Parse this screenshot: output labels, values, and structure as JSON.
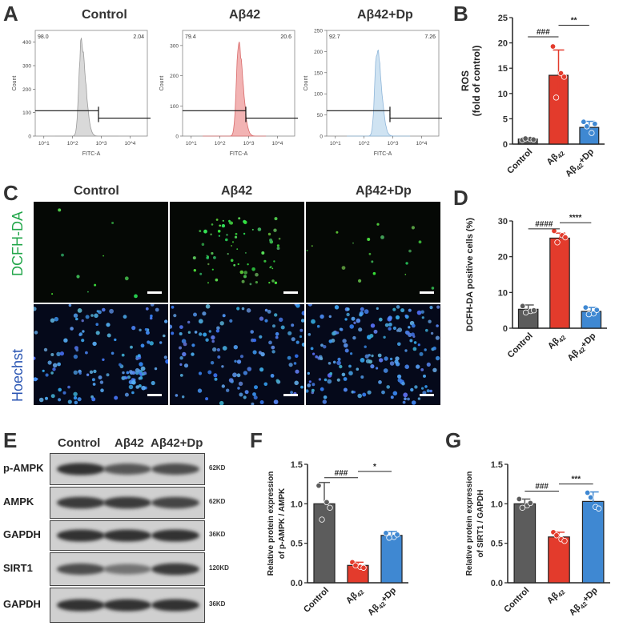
{
  "panels": {
    "A": {
      "letter": "A",
      "plots": [
        {
          "title": "Control",
          "left_pct": "98.0",
          "right_pct": "2.04",
          "yticks": [
            "0",
            "100",
            "200",
            "300",
            "400"
          ],
          "ymax": 450,
          "xlabel": "FITC-A",
          "xticks": [
            "10^1",
            "10^2",
            "10^3",
            "10^4"
          ],
          "fill": "#d9d9d9",
          "stroke": "#9a9a9a",
          "peak_log": 2.3,
          "peak_count": 400
        },
        {
          "title": "Aβ42",
          "left_pct": "79.4",
          "right_pct": "20.6",
          "yticks": [
            "0",
            "100",
            "200",
            "300"
          ],
          "ymax": 350,
          "xlabel": "FITC-A",
          "xticks": [
            "10^1",
            "10^2",
            "10^3",
            "10^4"
          ],
          "fill": "#f2b3b3",
          "stroke": "#d96b6b",
          "peak_log": 2.65,
          "peak_count": 300
        },
        {
          "title": "Aβ42+Dp",
          "left_pct": "92.7",
          "right_pct": "7.26",
          "yticks": [
            "0",
            "50",
            "100",
            "150",
            "200",
            "250"
          ],
          "ymax": 250,
          "xlabel": "FITC-A",
          "xticks": [
            "10^1",
            "10^2",
            "10^3",
            "10^4"
          ],
          "fill": "#cfe3f2",
          "stroke": "#8fb6d9",
          "peak_log": 2.45,
          "peak_count": 205
        }
      ]
    },
    "B": {
      "letter": "B"
    },
    "C": {
      "letter": "C",
      "col_titles": [
        "Control",
        "Aβ42",
        "Aβ42+Dp"
      ],
      "rows": [
        {
          "label": "DCFH-DA",
          "color": "#22a64a"
        },
        {
          "label": "Hoechst",
          "color": "#2b56b3"
        }
      ]
    },
    "D": {
      "letter": "D"
    },
    "E": {
      "letter": "E",
      "col_titles": [
        "Control",
        "Aβ42",
        "Aβ42+Dp"
      ],
      "bands": [
        {
          "label": "p-AMPK",
          "kd": "62KD",
          "int": [
            0.85,
            0.65,
            0.7
          ]
        },
        {
          "label": "AMPK",
          "kd": "62KD",
          "int": [
            0.8,
            0.8,
            0.75
          ]
        },
        {
          "label": "GAPDH",
          "kd": "36KD",
          "int": [
            0.85,
            0.85,
            0.85
          ]
        },
        {
          "label": "SIRT1",
          "kd": "120KD",
          "int": [
            0.7,
            0.5,
            0.8
          ]
        },
        {
          "label": "GAPDH",
          "kd": "36KD",
          "int": [
            0.85,
            0.85,
            0.85
          ]
        }
      ]
    },
    "F": {
      "letter": "F"
    },
    "G": {
      "letter": "G"
    }
  },
  "chart_data": [
    {
      "id": "B",
      "type": "bar",
      "categories": [
        "Control",
        "Aβ42",
        "Aβ42+Dp"
      ],
      "values": [
        1.0,
        13.6,
        3.3
      ],
      "errors": [
        0.3,
        5.0,
        1.2
      ],
      "points": [
        [
          0.8,
          1.0,
          1.1,
          0.9
        ],
        [
          19.3,
          14.0,
          9.2,
          13.3
        ],
        [
          4.4,
          2.2,
          3.5,
          4.0
        ]
      ],
      "colors": [
        "#5c5c5c",
        "#e33b2c",
        "#3f88d2"
      ],
      "ylabel": "ROS",
      "ylabel2": "(fold of control)",
      "ylim": [
        0,
        25
      ],
      "yticks": [
        0,
        5,
        10,
        15,
        20,
        25
      ],
      "sig": [
        {
          "from": 0,
          "to": 1,
          "text": "###",
          "y": 21.2
        },
        {
          "from": 1,
          "to": 2,
          "text": "**",
          "y": 23.5
        }
      ]
    },
    {
      "id": "D",
      "type": "bar",
      "categories": [
        "Control",
        "Aβ42",
        "Aβ42+Dp"
      ],
      "values": [
        5.3,
        25.2,
        4.7
      ],
      "errors": [
        1.2,
        1.4,
        1.1
      ],
      "points": [
        [
          6.2,
          4.8,
          4.4,
          5.0
        ],
        [
          27.2,
          26.0,
          24.0,
          25.4
        ],
        [
          5.8,
          4.1,
          3.9,
          5.1
        ]
      ],
      "colors": [
        "#5c5c5c",
        "#e33b2c",
        "#3f88d2"
      ],
      "ylabel": "DCFH-DA positive cells (%)",
      "ylabel2": "",
      "ylim": [
        0,
        30
      ],
      "yticks": [
        0,
        10,
        20,
        30
      ],
      "sig": [
        {
          "from": 0,
          "to": 1,
          "text": "####",
          "y": 27.8
        },
        {
          "from": 1,
          "to": 2,
          "text": "****",
          "y": 29.5
        }
      ]
    },
    {
      "id": "F",
      "type": "bar",
      "categories": [
        "Control",
        "Aβ42",
        "Aβ42+Dp"
      ],
      "values": [
        1.0,
        0.22,
        0.6
      ],
      "errors": [
        0.27,
        0.04,
        0.05
      ],
      "points": [
        [
          1.23,
          1.02,
          0.8,
          0.95
        ],
        [
          0.26,
          0.2,
          0.22,
          0.19
        ],
        [
          0.63,
          0.58,
          0.57,
          0.61
        ]
      ],
      "colors": [
        "#5c5c5c",
        "#e33b2c",
        "#3f88d2"
      ],
      "ylabel": "Relative protein expression",
      "ylabel2": "of p-AMPK / AMPK",
      "ylim": [
        0,
        1.5
      ],
      "yticks": [
        0.0,
        0.5,
        1.0,
        1.5
      ],
      "sig": [
        {
          "from": 0,
          "to": 1,
          "text": "###",
          "y": 1.33
        },
        {
          "from": 1,
          "to": 2,
          "text": "*",
          "y": 1.41
        }
      ]
    },
    {
      "id": "G",
      "type": "bar",
      "categories": [
        "Control",
        "Aβ42",
        "Aβ42+Dp"
      ],
      "values": [
        1.0,
        0.58,
        1.03
      ],
      "errors": [
        0.06,
        0.06,
        0.12
      ],
      "points": [
        [
          1.06,
          0.98,
          0.95,
          1.01
        ],
        [
          0.64,
          0.55,
          0.6,
          0.53
        ],
        [
          1.14,
          0.96,
          1.08,
          0.94
        ]
      ],
      "colors": [
        "#5c5c5c",
        "#e33b2c",
        "#3f88d2"
      ],
      "ylabel": "Relative protein expression",
      "ylabel2": "of SIRT1 / GAPDH",
      "ylim": [
        0,
        1.5
      ],
      "yticks": [
        0.0,
        0.5,
        1.0,
        1.5
      ],
      "sig": [
        {
          "from": 0,
          "to": 1,
          "text": "###",
          "y": 1.16
        },
        {
          "from": 1,
          "to": 2,
          "text": "***",
          "y": 1.25
        }
      ]
    }
  ]
}
